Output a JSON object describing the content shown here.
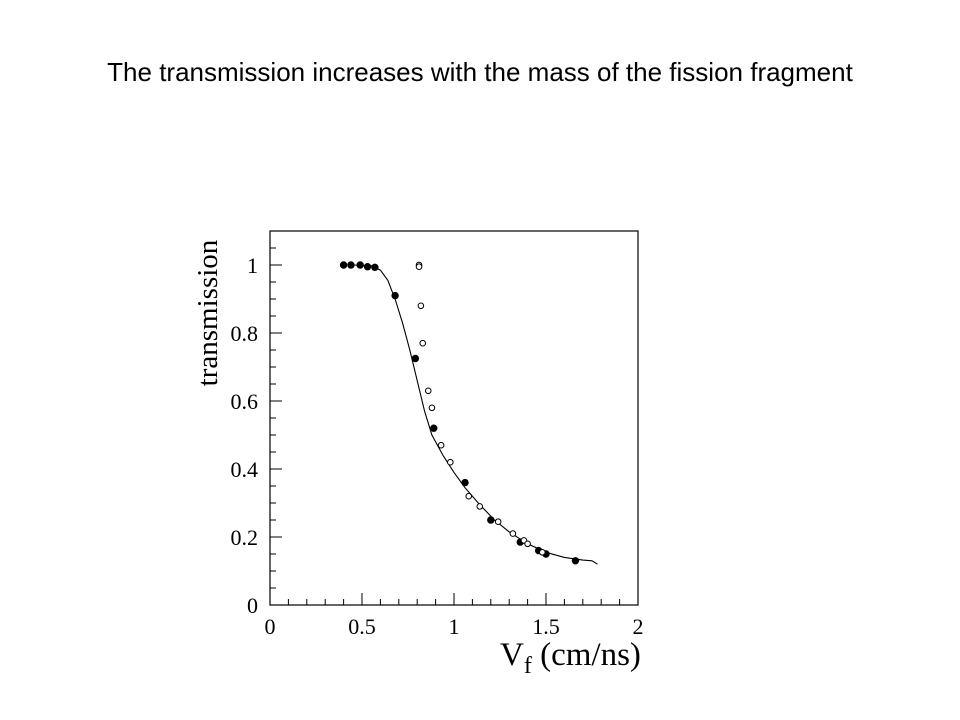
{
  "slide": {
    "title": "The transmission increases with the mass of the fission fragment"
  },
  "chart_data": {
    "type": "scatter",
    "title": "",
    "xlabel": "V",
    "xlabel_subscript": "f",
    "xlabel_unit": " (cm/ns)",
    "ylabel": "transmission",
    "xlim": [
      0,
      2
    ],
    "ylim": [
      0,
      1.1
    ],
    "x_ticks": [
      {
        "value": 0,
        "label": "0"
      },
      {
        "value": 0.5,
        "label": "0.5"
      },
      {
        "value": 1,
        "label": "1"
      },
      {
        "value": 1.5,
        "label": "1.5"
      },
      {
        "value": 2,
        "label": "2"
      }
    ],
    "y_ticks": [
      {
        "value": 0,
        "label": "0"
      },
      {
        "value": 0.2,
        "label": "0.2"
      },
      {
        "value": 0.4,
        "label": "0.4"
      },
      {
        "value": 0.6,
        "label": "0.6"
      },
      {
        "value": 0.8,
        "label": "0.8"
      },
      {
        "value": 1,
        "label": "1"
      }
    ],
    "grid": false,
    "series": [
      {
        "marker": "filled-circle",
        "points": [
          [
            0.4,
            1.0
          ],
          [
            0.44,
            1.0
          ],
          [
            0.49,
            1.0
          ],
          [
            0.53,
            0.995
          ],
          [
            0.57,
            0.993
          ],
          [
            0.68,
            0.91
          ],
          [
            0.79,
            0.725
          ],
          [
            0.89,
            0.52
          ],
          [
            1.06,
            0.36
          ],
          [
            1.2,
            0.25
          ],
          [
            1.36,
            0.185
          ],
          [
            1.46,
            0.16
          ],
          [
            1.5,
            0.15
          ],
          [
            1.66,
            0.13
          ]
        ]
      },
      {
        "marker": "open-circle",
        "points": [
          [
            0.81,
            1.0
          ],
          [
            0.81,
            0.995
          ],
          [
            0.82,
            0.88
          ],
          [
            0.83,
            0.77
          ],
          [
            0.86,
            0.63
          ],
          [
            0.88,
            0.58
          ],
          [
            0.93,
            0.47
          ],
          [
            0.98,
            0.42
          ],
          [
            1.08,
            0.32
          ],
          [
            1.14,
            0.29
          ],
          [
            1.24,
            0.245
          ],
          [
            1.32,
            0.21
          ],
          [
            1.38,
            0.19
          ],
          [
            1.4,
            0.18
          ],
          [
            1.48,
            0.155
          ]
        ]
      },
      {
        "marker": "line",
        "points": [
          [
            0.45,
            1.0
          ],
          [
            0.55,
            0.998
          ],
          [
            0.6,
            0.985
          ],
          [
            0.64,
            0.955
          ],
          [
            0.68,
            0.9
          ],
          [
            0.72,
            0.83
          ],
          [
            0.76,
            0.75
          ],
          [
            0.8,
            0.66
          ],
          [
            0.84,
            0.57
          ],
          [
            0.88,
            0.5
          ],
          [
            0.94,
            0.44
          ],
          [
            1.0,
            0.39
          ],
          [
            1.06,
            0.345
          ],
          [
            1.14,
            0.295
          ],
          [
            1.22,
            0.25
          ],
          [
            1.3,
            0.215
          ],
          [
            1.4,
            0.18
          ],
          [
            1.5,
            0.155
          ],
          [
            1.6,
            0.14
          ],
          [
            1.7,
            0.132
          ],
          [
            1.75,
            0.13
          ],
          [
            1.78,
            0.12
          ]
        ]
      }
    ]
  }
}
